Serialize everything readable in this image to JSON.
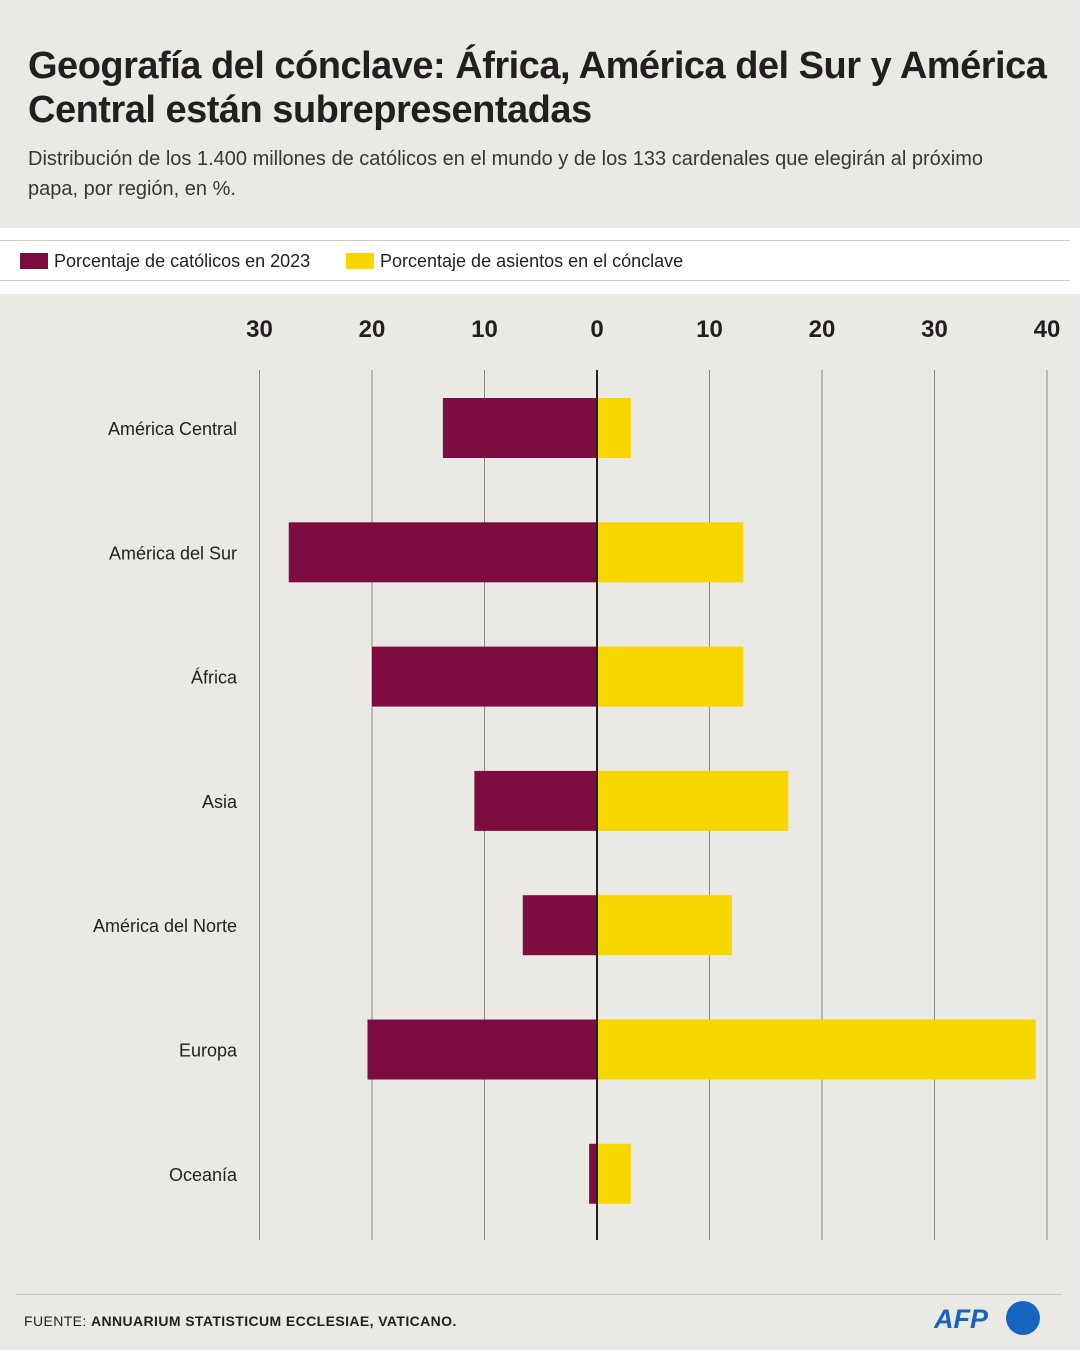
{
  "header": {
    "title": "Geografía del cónclave: África, América del Sur y América Central están subrepresentadas",
    "subtitle": "Distribución de los 1.400 millones de católicos en el mundo y de los 133 cardenales que elegirán al próximo papa, por región, en %."
  },
  "legend": [
    {
      "label": "Porcentaje de católicos en 2023",
      "color": "#7d0c40"
    },
    {
      "label": "Porcentaje de asientos en el cónclave",
      "color": "#f6d800"
    }
  ],
  "chart_data": {
    "type": "bar",
    "orientation": "horizontal-diverging",
    "categories": [
      "América Central",
      "América del Sur",
      "África",
      "Asia",
      "América del Norte",
      "Europa",
      "Oceanía"
    ],
    "series": [
      {
        "name": "Porcentaje de católicos en 2023",
        "color": "#7d0c40",
        "direction": "left",
        "values": [
          13.7,
          27.4,
          20.0,
          10.9,
          6.6,
          20.4,
          0.7
        ]
      },
      {
        "name": "Porcentaje de asientos en el cónclave",
        "color": "#f6d800",
        "direction": "right",
        "values": [
          3.0,
          13.0,
          13.0,
          17.0,
          12.0,
          39.0,
          3.0
        ]
      }
    ],
    "left_ticks": [
      "30",
      "20",
      "10"
    ],
    "right_ticks": [
      "0",
      "10",
      "20",
      "30",
      "40"
    ],
    "left_range": [
      0,
      30
    ],
    "right_range": [
      0,
      40
    ],
    "grid": true
  },
  "footer": {
    "source_prefix": "FUENTE: ",
    "source_text": "ANNUARIUM STATISTICUM ECCLESIAE, VATICANO.",
    "logo_text": "AFP",
    "logo_color": "#1565c0"
  }
}
